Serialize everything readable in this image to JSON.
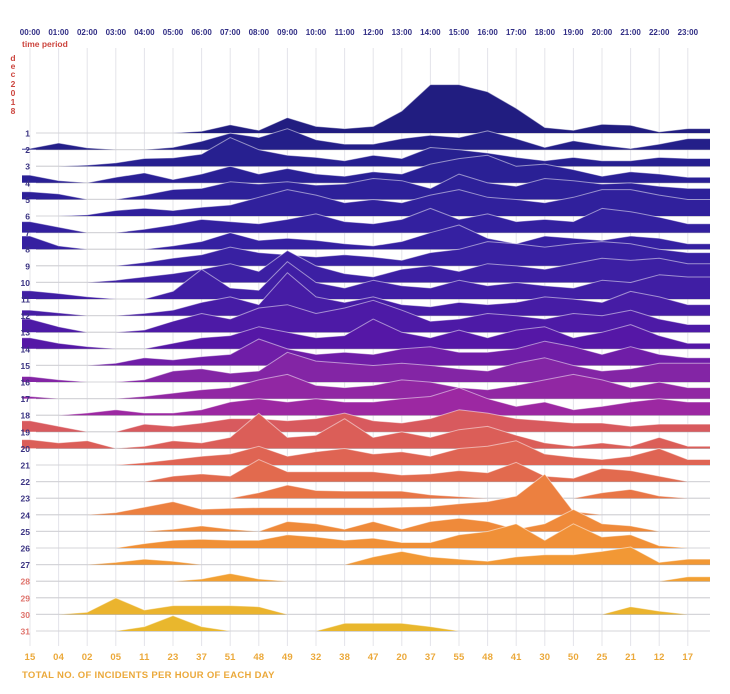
{
  "header": {
    "time_axis_label": "time period",
    "month_vertical": "dec",
    "year_vertical": "2018"
  },
  "footer": {
    "totals_title": "TOTAL NO. OF INCIDENTS PER HOUR OF EACH DAY",
    "totals_per_hour": [
      "15",
      "04",
      "02",
      "05",
      "11",
      "23",
      "37",
      "51",
      "48",
      "49",
      "32",
      "38",
      "47",
      "20",
      "37",
      "55",
      "48",
      "41",
      "30",
      "50",
      "25",
      "21",
      "12",
      "17"
    ]
  },
  "styles": {
    "red_text": "#cc453e",
    "hour_text": "#312e85",
    "day_text_normal": "#3a3382",
    "day_text_late": "#df736c",
    "totals_text": "#eba93b",
    "v_grid": "#e4e4ea",
    "baseline": "#a8a8b0",
    "ridge_stroke": "rgba(255,255,255,0.5)"
  },
  "chart_data": {
    "type": "area",
    "subtype": "ridgeline",
    "title": "TOTAL NO. OF INCIDENTS PER HOUR OF EACH DAY",
    "xlabel": "time period",
    "ylabel": "dec 2018",
    "x_tick_labels": [
      "00:00",
      "01:00",
      "02:00",
      "03:00",
      "04:00",
      "05:00",
      "06:00",
      "07:00",
      "08:00",
      "09:00",
      "10:00",
      "11:00",
      "12:00",
      "13:00",
      "14:00",
      "15:00",
      "16:00",
      "17:00",
      "18:00",
      "19:00",
      "20:00",
      "21:00",
      "22:00",
      "23:00"
    ],
    "hourly_totals": [
      15,
      4,
      2,
      5,
      11,
      23,
      37,
      51,
      48,
      49,
      32,
      38,
      47,
      20,
      37,
      55,
      48,
      41,
      30,
      50,
      25,
      21,
      12,
      17
    ],
    "grid": true,
    "legend": false,
    "rows": [
      {
        "day": 1,
        "color": "#211d80",
        "values": [
          0,
          0,
          0,
          0,
          0,
          0,
          0.3,
          1.5,
          0.5,
          2.8,
          1.2,
          0.8,
          1.2,
          4,
          8.8,
          8.8,
          7.5,
          4.5,
          1,
          0.5,
          1.6,
          1.4,
          0.2,
          0.8
        ]
      },
      {
        "day": 2,
        "color": "#241f89",
        "values": [
          0.2,
          1.2,
          0.3,
          0,
          0,
          0.4,
          1.5,
          3,
          2.2,
          3.8,
          1.8,
          1,
          1,
          2,
          2.6,
          2.2,
          3.4,
          2,
          0.4,
          1.6,
          0.8,
          0.2,
          1,
          2
        ]
      },
      {
        "day": 3,
        "color": "#272090",
        "values": [
          0,
          0,
          0.2,
          0.6,
          1.4,
          1.5,
          2.2,
          5.2,
          3,
          2,
          1.6,
          1,
          2,
          1.4,
          3.4,
          3,
          2.4,
          1.6,
          1,
          1.6,
          1,
          1,
          1.6,
          1.4
        ]
      },
      {
        "day": 4,
        "color": "#2a2095",
        "values": [
          1.4,
          0.4,
          0,
          1,
          1.8,
          0.6,
          1.6,
          3,
          1.6,
          2.6,
          1.6,
          1.2,
          2,
          1.6,
          3.4,
          4.4,
          5,
          3,
          3.4,
          2.4,
          1.2,
          2,
          1.6,
          1
        ]
      },
      {
        "day": 5,
        "color": "#2d2099",
        "values": [
          1.4,
          1,
          0,
          0,
          0.8,
          1.8,
          2,
          3.2,
          2.8,
          3.2,
          2.6,
          2.8,
          3.8,
          3.4,
          2,
          4.6,
          3,
          2.4,
          3.8,
          3.4,
          2.8,
          3,
          2.4,
          2
        ]
      },
      {
        "day": 6,
        "color": "#30209c",
        "values": [
          0,
          0,
          0.2,
          1,
          1.4,
          1,
          1.6,
          2,
          3.4,
          4.8,
          3.8,
          2.4,
          3,
          2.4,
          3.8,
          4.8,
          3.4,
          3,
          2.4,
          3.4,
          4.8,
          4.8,
          3.8,
          3
        ]
      },
      {
        "day": 7,
        "color": "#33209f",
        "values": [
          2,
          1,
          0,
          0,
          0.6,
          1.4,
          2.4,
          2,
          1.6,
          2.4,
          3.4,
          2,
          1.6,
          2.4,
          4.4,
          2.4,
          3.4,
          2,
          2.4,
          2,
          4.4,
          3.8,
          2.8,
          1.6
        ]
      },
      {
        "day": 8,
        "color": "#3520a1",
        "values": [
          2.4,
          0.6,
          0,
          0,
          0,
          0.6,
          1.4,
          3,
          1.6,
          2,
          1.6,
          1,
          0.6,
          1.4,
          3,
          4.4,
          2,
          1,
          2.4,
          2,
          1.6,
          2.4,
          2,
          1
        ]
      },
      {
        "day": 9,
        "color": "#3820a2",
        "values": [
          0,
          0,
          0,
          0,
          0.6,
          1.4,
          2,
          3.4,
          2.4,
          2,
          1.6,
          2,
          1.6,
          1,
          2.4,
          3,
          4.4,
          4,
          3.4,
          4,
          4.4,
          4,
          3,
          2.4
        ]
      },
      {
        "day": 10,
        "color": "#3c1fa3",
        "values": [
          0,
          0,
          0,
          0.4,
          1,
          1.6,
          2.4,
          3.4,
          2,
          5.8,
          3,
          1.6,
          1,
          2.4,
          3,
          2,
          3.4,
          3,
          2.4,
          3.4,
          4.4,
          4,
          4.4,
          3.4
        ]
      },
      {
        "day": 11,
        "color": "#401ea4",
        "values": [
          1.5,
          1,
          0.4,
          0,
          0,
          1.4,
          5.4,
          2,
          1.6,
          6.8,
          3,
          2,
          3.4,
          2.4,
          2,
          3.4,
          2.4,
          3,
          2.4,
          2,
          3.4,
          3,
          4.4,
          4
        ]
      },
      {
        "day": 12,
        "color": "#461ca5",
        "values": [
          1,
          0.5,
          0,
          0,
          0.4,
          1,
          2.4,
          3.4,
          2,
          7.8,
          3.4,
          2.4,
          3.4,
          2,
          1.6,
          2.4,
          2,
          2.4,
          3.4,
          3,
          2.4,
          4.4,
          3.4,
          2
        ]
      },
      {
        "day": 13,
        "color": "#4d1aa6",
        "values": [
          2.4,
          1,
          0,
          0,
          0.4,
          2,
          3.4,
          2.4,
          4.4,
          5,
          3.4,
          4.4,
          5.8,
          4,
          2,
          2.4,
          3.4,
          3,
          2.4,
          3.4,
          3,
          4,
          2.4,
          1.4
        ]
      },
      {
        "day": 14,
        "color": "#5517a6",
        "values": [
          2,
          1,
          0.4,
          0,
          0,
          1,
          2,
          2.4,
          4,
          3,
          2,
          2.4,
          5.4,
          3,
          2,
          3.4,
          2,
          3.4,
          4,
          2,
          3,
          4.4,
          2.4,
          1
        ]
      },
      {
        "day": 15,
        "color": "#6f1da7",
        "values": [
          0,
          0,
          0,
          0.4,
          1.4,
          1,
          1.6,
          2,
          4.8,
          3,
          2,
          2.4,
          2,
          3,
          3.4,
          2.4,
          2.4,
          3,
          4.4,
          3.4,
          2,
          3.4,
          2,
          1.4
        ]
      },
      {
        "day": 16,
        "color": "#8325a5",
        "values": [
          1,
          0.4,
          0,
          0,
          0.4,
          2,
          2.4,
          1.6,
          2,
          5.4,
          3.8,
          3.4,
          3,
          3.4,
          3,
          2.4,
          2,
          3.4,
          4.4,
          3,
          2,
          2.4,
          3.4,
          3.4
        ]
      },
      {
        "day": 17,
        "color": "#9127a3",
        "values": [
          0.4,
          0,
          0,
          0,
          0.4,
          1,
          1.6,
          2,
          3.4,
          4.4,
          2.4,
          2,
          2.4,
          3.4,
          3,
          2,
          1.6,
          2.4,
          3.4,
          4.4,
          3.4,
          2,
          3,
          2
        ]
      },
      {
        "day": 18,
        "color": "#9c28a2",
        "values": [
          0,
          0,
          0.4,
          1,
          0.4,
          0.4,
          1,
          2.4,
          3,
          2.4,
          3,
          2.4,
          2.4,
          3,
          3.4,
          5,
          3,
          1.6,
          2.4,
          1,
          1.6,
          2.4,
          3,
          2.4
        ]
      },
      {
        "day": 19,
        "color": "#d85a5e",
        "values": [
          2,
          1,
          0,
          0,
          1.4,
          1,
          1.6,
          2.4,
          2.4,
          2,
          2.4,
          3.4,
          2,
          1.6,
          2.4,
          4,
          3.4,
          2.4,
          2,
          1.6,
          1.6,
          1,
          1.4,
          1.4
        ]
      },
      {
        "day": 20,
        "color": "#db5e58",
        "values": [
          1.6,
          1,
          1.4,
          0,
          0.4,
          1.4,
          1,
          2,
          6.4,
          2,
          2.4,
          5.4,
          2,
          3,
          2,
          3.4,
          4,
          2.4,
          1,
          0.4,
          1,
          0.4,
          2,
          0.4
        ]
      },
      {
        "day": 21,
        "color": "#df6453",
        "values": [
          0,
          0,
          0,
          0,
          0.4,
          1,
          1.6,
          2,
          3.4,
          1.6,
          2.4,
          3,
          2,
          2.4,
          1.6,
          3,
          3.4,
          4.4,
          2,
          1.4,
          1,
          1.6,
          3,
          1
        ]
      },
      {
        "day": 22,
        "color": "#e26a4e",
        "values": [
          0,
          0,
          0,
          0,
          0,
          1,
          1.4,
          1,
          4,
          1.8,
          1.8,
          1.8,
          1.8,
          1.2,
          1.4,
          2,
          1.6,
          3.5,
          1,
          0.6,
          2.4,
          2,
          1,
          0
        ]
      },
      {
        "day": 23,
        "color": "#e87647",
        "values": [
          0,
          0,
          0,
          0,
          0,
          0,
          0,
          0,
          1,
          2.4,
          1.4,
          1.3,
          1.3,
          1.3,
          0.6,
          0.3,
          0,
          0,
          0,
          0,
          1,
          1.6,
          0.4,
          0
        ]
      },
      {
        "day": 24,
        "color": "#ec8040",
        "values": [
          0,
          0,
          0,
          0.4,
          1.4,
          2.4,
          1,
          1.2,
          1.3,
          1.3,
          1.3,
          1.3,
          1.3,
          1.4,
          1.5,
          2,
          2.4,
          3.4,
          7.4,
          0.6,
          0,
          0,
          0,
          0
        ]
      },
      {
        "day": 25,
        "color": "#ef8a3a",
        "values": [
          0,
          0,
          0,
          0,
          0,
          0.4,
          1,
          0.4,
          0,
          1.8,
          1.4,
          0.4,
          1.8,
          0.4,
          1.8,
          2.4,
          1.8,
          0.4,
          1.4,
          4,
          1.4,
          1,
          0,
          0
        ]
      },
      {
        "day": 26,
        "color": "#f09037",
        "values": [
          0,
          0,
          0,
          0,
          0.8,
          1.4,
          1.6,
          1.4,
          1.4,
          2.4,
          2,
          1.4,
          1.8,
          1,
          1,
          2.4,
          3,
          4.4,
          1.4,
          4.4,
          2,
          2.4,
          0.4,
          0
        ]
      },
      {
        "day": 27,
        "color": "#f29835",
        "values": [
          0,
          0,
          0,
          0.4,
          1,
          0.6,
          0,
          0,
          0,
          0,
          0,
          0,
          1.4,
          2.4,
          1.4,
          1,
          0.6,
          1.4,
          1.8,
          1.8,
          2.4,
          3.2,
          0.4,
          1
        ]
      },
      {
        "day": 28,
        "color": "#f2a033",
        "values": [
          0,
          0,
          0,
          0,
          0,
          0,
          0.4,
          1.4,
          0.4,
          0,
          0,
          0,
          0,
          0,
          0,
          0,
          0,
          0,
          0,
          0,
          0,
          0,
          0,
          0.8
        ]
      },
      {
        "day": 29,
        "color": "#eeae30",
        "values": [
          0,
          0,
          0,
          0,
          0,
          0,
          0,
          0,
          0,
          0,
          0,
          0,
          0,
          0,
          0,
          0,
          0,
          0,
          0,
          0,
          0,
          0,
          0,
          0
        ]
      },
      {
        "day": 30,
        "color": "#ebb42e",
        "values": [
          0,
          0,
          0.4,
          3,
          0.8,
          1.6,
          1.6,
          1.6,
          1.4,
          0,
          0,
          0,
          0,
          0,
          0,
          0,
          0,
          0,
          0,
          0,
          0,
          1.4,
          0.6,
          0
        ]
      },
      {
        "day": 31,
        "color": "#e9b72d",
        "values": [
          0,
          0,
          0,
          0,
          0.8,
          2.8,
          0.8,
          0,
          0,
          0,
          0,
          1.4,
          1.4,
          1.4,
          0.8,
          0,
          0,
          0,
          0,
          0,
          0,
          0,
          0,
          0
        ]
      }
    ]
  }
}
